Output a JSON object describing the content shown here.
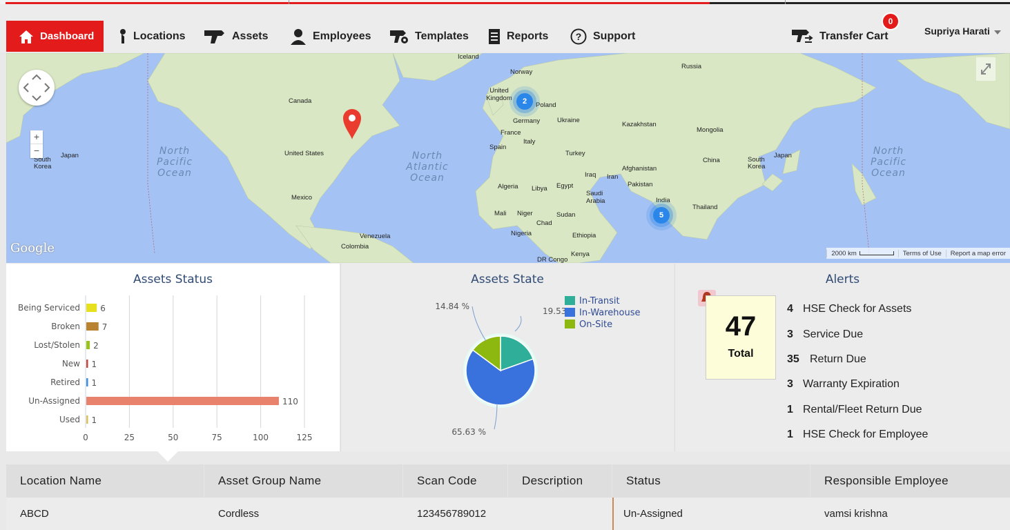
{
  "nav": {
    "dashboard": "Dashboard",
    "locations": "Locations",
    "assets": "Assets",
    "employees": "Employees",
    "templates": "Templates",
    "reports": "Reports",
    "support": "Support",
    "transfer_cart": "Transfer Cart",
    "cart_count": "0",
    "user_name": "Supriya Harati"
  },
  "map": {
    "labels": {
      "iceland": "Iceland",
      "norway": "Norway",
      "russia": "Russia",
      "uk": "United Kingdom",
      "poland": "Poland",
      "germany": "Germany",
      "ukraine": "Ukraine",
      "france": "France",
      "italy": "Italy",
      "spain": "Spain",
      "kazakhstan": "Kazakhstan",
      "mongolia": "Mongolia",
      "turkey": "Turkey",
      "china": "China",
      "canada": "Canada",
      "us": "United States",
      "mexico": "Mexico",
      "japan_l": "Japan",
      "skorea_l": "South Korea",
      "japan_r": "Japan",
      "skorea_r": "South Korea",
      "iraq": "Iraq",
      "iran": "Iran",
      "afghanistan": "Afghanistan",
      "pakistan": "Pakistan",
      "algeria": "Algeria",
      "libya": "Libya",
      "egypt": "Egypt",
      "saudi": "Saudi Arabia",
      "india": "India",
      "thailand": "Thailand",
      "mali": "Mali",
      "niger": "Niger",
      "chad": "Chad",
      "sudan": "Sudan",
      "nigeria": "Nigeria",
      "ethiopia": "Ethiopia",
      "venezuela": "Venezuela",
      "colombia": "Colombia",
      "drcongo": "DR Congo",
      "kenya": "Kenya"
    },
    "oceans": {
      "npac_l": "North Pacific Ocean",
      "natl": "North Atlantic Ocean",
      "npac_r": "North Pacific Ocean"
    },
    "clusters": {
      "europe": "2",
      "india": "5"
    },
    "google": "Google",
    "scale": "2000 km",
    "terms": "Terms of Use",
    "report": "Report a map error"
  },
  "assets_status": {
    "title": "Assets Status",
    "chart_data": {
      "type": "bar",
      "orientation": "horizontal",
      "categories": [
        "Being Serviced",
        "Broken",
        "Lost/Stolen",
        "New",
        "Retired",
        "Un-Assigned",
        "Used"
      ],
      "values": [
        6,
        7,
        2,
        1,
        1,
        110,
        1
      ],
      "colors": [
        "#e6e01e",
        "#b9822e",
        "#9ac31c",
        "#c4463f",
        "#3f8ee0",
        "#e9826d",
        "#d7c25c"
      ],
      "xticks": [
        "0",
        "25",
        "50",
        "75",
        "100",
        "125"
      ],
      "xlim": [
        0,
        125
      ]
    }
  },
  "assets_state": {
    "title": "Assets State",
    "chart_data": {
      "type": "pie",
      "labels": [
        "In-Transit",
        "In-Warehouse",
        "On-Site"
      ],
      "values": [
        19.53,
        65.63,
        14.84
      ],
      "data_labels": [
        "19.53",
        "65.63 %",
        "14.84 %"
      ],
      "colors": [
        "#2fae9a",
        "#3a72dd",
        "#8cb80f"
      ]
    }
  },
  "alerts": {
    "title": "Alerts",
    "total": "47",
    "total_label": "Total",
    "items": [
      {
        "count": "4",
        "label": "HSE Check for Assets"
      },
      {
        "count": "3",
        "label": "Service Due"
      },
      {
        "count": "35",
        "label": "Return Due"
      },
      {
        "count": "3",
        "label": "Warranty Expiration"
      },
      {
        "count": "1",
        "label": "Rental/Fleet Return Due"
      },
      {
        "count": "1",
        "label": "HSE Check for Employee"
      }
    ]
  },
  "table": {
    "headers": [
      "Location Name",
      "Asset Group Name",
      "Scan Code",
      "Description",
      "Status",
      "Responsible Employee"
    ],
    "rows": [
      [
        "ABCD",
        "Cordless",
        "123456789012",
        "",
        "Un-Assigned",
        "vamsi krishna"
      ]
    ]
  }
}
